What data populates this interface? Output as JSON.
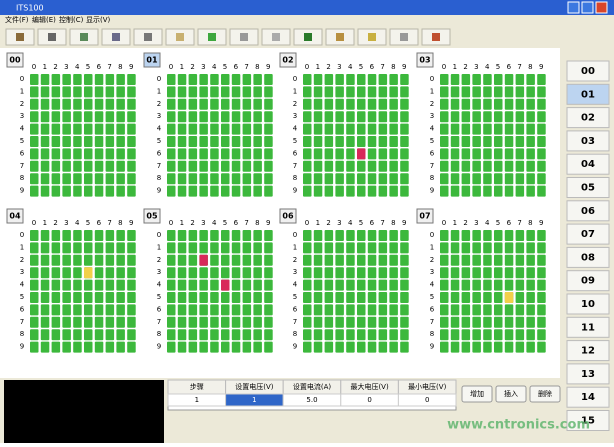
{
  "window": {
    "title": "ITS100",
    "menu": [
      "文件(F)",
      "编辑(E)",
      "控制(C)",
      "显示(V)"
    ]
  },
  "grid": {
    "columns": [
      "0",
      "1",
      "2",
      "3",
      "4",
      "5",
      "6",
      "7",
      "8",
      "9"
    ],
    "rows": [
      "0",
      "1",
      "2",
      "3",
      "4",
      "5",
      "6",
      "7",
      "8",
      "9"
    ]
  },
  "panels": [
    {
      "label": "00",
      "marked": []
    },
    {
      "label": "01",
      "marked": []
    },
    {
      "label": "02",
      "marked": [
        {
          "row": 6,
          "col": 5,
          "color": "#d8285a"
        }
      ]
    },
    {
      "label": "03",
      "marked": []
    },
    {
      "label": "04",
      "marked": [
        {
          "row": 3,
          "col": 5,
          "color": "#f2d04a"
        }
      ]
    },
    {
      "label": "05",
      "marked": [
        {
          "row": 2,
          "col": 3,
          "color": "#d8285a"
        },
        {
          "row": 4,
          "col": 5,
          "color": "#d8285a"
        }
      ]
    },
    {
      "label": "06",
      "marked": []
    },
    {
      "label": "07",
      "marked": [
        {
          "row": 5,
          "col": 6,
          "color": "#f2d04a"
        }
      ]
    }
  ],
  "sidebar": [
    "00",
    "01",
    "02",
    "03",
    "04",
    "05",
    "06",
    "07",
    "08",
    "09",
    "10",
    "11",
    "12",
    "13",
    "14",
    "15"
  ],
  "table": {
    "headers": [
      "步骤",
      "设置电压(V)",
      "设置电流(A)",
      "最大电压(V)",
      "最小电压(V)"
    ],
    "rows": [
      [
        "1",
        "1",
        "5.0",
        "0",
        "0"
      ]
    ]
  },
  "buttons": [
    "增加",
    "插入",
    "删除"
  ],
  "watermark": "www.cntronics.com"
}
